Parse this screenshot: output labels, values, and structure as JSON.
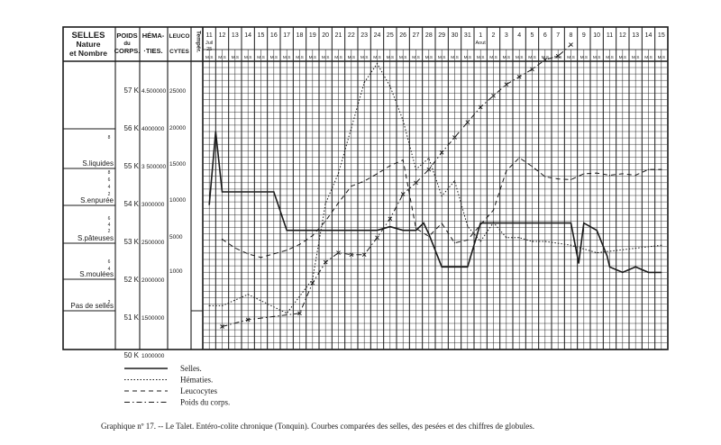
{
  "chart_data": {
    "type": "line",
    "header": {
      "selles": [
        "SELLES",
        "Nature",
        "et Nombre"
      ],
      "poids": [
        "POIDS",
        "du",
        "CORPS."
      ],
      "hematies": [
        "HÉMA-",
        "·TIES."
      ],
      "leucocytes": [
        "LEUCO",
        "CYTES"
      ],
      "temperature": "Tempér."
    },
    "months": {
      "juil": "Juil",
      "year": "25",
      "aout": "Aout"
    },
    "dates": [
      "11",
      "12",
      "13",
      "14",
      "15",
      "16",
      "17",
      "18",
      "19",
      "20",
      "21",
      "22",
      "23",
      "24",
      "25",
      "26",
      "27",
      "28",
      "29",
      "30",
      "31",
      "1",
      "2",
      "3",
      "4",
      "5",
      "6",
      "7",
      "8",
      "9",
      "10",
      "11",
      "12",
      "13",
      "14",
      "15"
    ],
    "ms": "M.S",
    "selles_categories": [
      "S.liquides",
      "S.enpurée",
      "S.pâteuses",
      "S.moulées",
      "Pas de selles"
    ],
    "poids_ticks": [
      "57 K",
      "56 K",
      "55 K",
      "54 K",
      "53 K",
      "52 K",
      "51 K",
      "50 K"
    ],
    "hematies_ticks": [
      "4.500000",
      "4000000",
      "3 500000",
      "3000000",
      "2500000",
      "2000000",
      "1500000",
      "1000000"
    ],
    "leucocytes_ticks": [
      "25000",
      "20000",
      "15000",
      "10000",
      "5000",
      "1000"
    ],
    "series": [
      {
        "name": "Selles.",
        "style": "solid",
        "points": [
          [
            0,
            2.9
          ],
          [
            0.5,
            4.9
          ],
          [
            1,
            3.25
          ],
          [
            2,
            3.25
          ],
          [
            3,
            3.25
          ],
          [
            4,
            3.25
          ],
          [
            5,
            3.25
          ],
          [
            6,
            2.2
          ],
          [
            7,
            2.2
          ],
          [
            8,
            2.2
          ],
          [
            9,
            2.2
          ],
          [
            10,
            2.2
          ],
          [
            11,
            2.2
          ],
          [
            12,
            2.2
          ],
          [
            13,
            2.2
          ],
          [
            14,
            2.3
          ],
          [
            15,
            2.2
          ],
          [
            16,
            2.2
          ],
          [
            16.6,
            2.4
          ],
          [
            17,
            2.1
          ],
          [
            18,
            1.2
          ],
          [
            19,
            1.2
          ],
          [
            20,
            1.2
          ],
          [
            21,
            2.4
          ],
          [
            22,
            2.4
          ],
          [
            23,
            2.4
          ],
          [
            24,
            2.4
          ],
          [
            25,
            2.4
          ],
          [
            26,
            2.4
          ],
          [
            27,
            2.4
          ],
          [
            28,
            2.4
          ],
          [
            28.6,
            1.3
          ],
          [
            29,
            2.4
          ],
          [
            30,
            2.2
          ],
          [
            30.8,
            1.5
          ],
          [
            31,
            1.2
          ],
          [
            32,
            1.05
          ],
          [
            33,
            1.2
          ],
          [
            34,
            1.05
          ],
          [
            35,
            1.05
          ]
        ]
      },
      {
        "name": "Hématies.",
        "style": "dotted",
        "points": [
          [
            0,
            1650000
          ],
          [
            1,
            1650000
          ],
          [
            3,
            1800000
          ],
          [
            6,
            1550000
          ],
          [
            8,
            2000000
          ],
          [
            9,
            3000000
          ],
          [
            10,
            3400000
          ],
          [
            11,
            4000000
          ],
          [
            12,
            4600000
          ],
          [
            13,
            4850000
          ],
          [
            14,
            4550000
          ],
          [
            15,
            4100000
          ],
          [
            16,
            3450000
          ],
          [
            17,
            3600000
          ],
          [
            18,
            3100000
          ],
          [
            19,
            3300000
          ],
          [
            20,
            2700000
          ],
          [
            21,
            2500000
          ],
          [
            22,
            2750000
          ],
          [
            23,
            2550000
          ],
          [
            24,
            2550000
          ],
          [
            25,
            2500000
          ],
          [
            26,
            2500000
          ],
          [
            28,
            2450000
          ],
          [
            30,
            2350000
          ],
          [
            35,
            2450000
          ]
        ]
      },
      {
        "name": "Leucocytes",
        "style": "dashed",
        "points": [
          [
            1,
            4500
          ],
          [
            2,
            3300
          ],
          [
            3,
            2500
          ],
          [
            4,
            2000
          ],
          [
            5,
            2500
          ],
          [
            6,
            3000
          ],
          [
            7,
            3800
          ],
          [
            8,
            5000
          ],
          [
            9,
            7000
          ],
          [
            10,
            9500
          ],
          [
            11,
            11800
          ],
          [
            12,
            12500
          ],
          [
            13,
            13500
          ],
          [
            14,
            14600
          ],
          [
            15,
            15400
          ],
          [
            16,
            6000
          ],
          [
            17,
            4900
          ],
          [
            18,
            6700
          ],
          [
            19,
            4000
          ],
          [
            20,
            4400
          ],
          [
            21,
            6500
          ],
          [
            22,
            8500
          ],
          [
            23,
            13900
          ],
          [
            24,
            15700
          ],
          [
            25,
            14500
          ],
          [
            26,
            13100
          ],
          [
            27,
            12800
          ],
          [
            28,
            12700
          ],
          [
            29,
            13500
          ],
          [
            30,
            13600
          ],
          [
            31,
            13300
          ],
          [
            32,
            13500
          ],
          [
            33,
            13300
          ],
          [
            34,
            14100
          ],
          [
            35,
            14100
          ]
        ]
      },
      {
        "name": "Poids du corps.",
        "style": "dash-dot",
        "points": [
          [
            1,
            50.75
          ],
          [
            3,
            50.93
          ],
          [
            7,
            51.1
          ],
          [
            8,
            51.9
          ],
          [
            9,
            52.45
          ],
          [
            10,
            52.7
          ],
          [
            11,
            52.65
          ],
          [
            12,
            52.65
          ],
          [
            13,
            53.1
          ],
          [
            14,
            53.6
          ],
          [
            15,
            54.25
          ],
          [
            16,
            54.55
          ],
          [
            17,
            54.9
          ],
          [
            18,
            55.35
          ],
          [
            19,
            55.75
          ],
          [
            20,
            56.15
          ],
          [
            21,
            56.55
          ],
          [
            22,
            56.85
          ],
          [
            23,
            57.15
          ],
          [
            24,
            57.35
          ],
          [
            25,
            57.55
          ],
          [
            26,
            57.8
          ],
          [
            27,
            57.9
          ],
          [
            28,
            58.2
          ]
        ]
      }
    ],
    "legend": [
      "Selles.",
      "Hématies.",
      "Leucocytes",
      "Poids du corps."
    ],
    "caption": "Graphique nº 17. -- Le Talet. Entéro-colite chronique (Tonquin). Courbes comparées des selles, des pesées et des chiffres de globules."
  }
}
